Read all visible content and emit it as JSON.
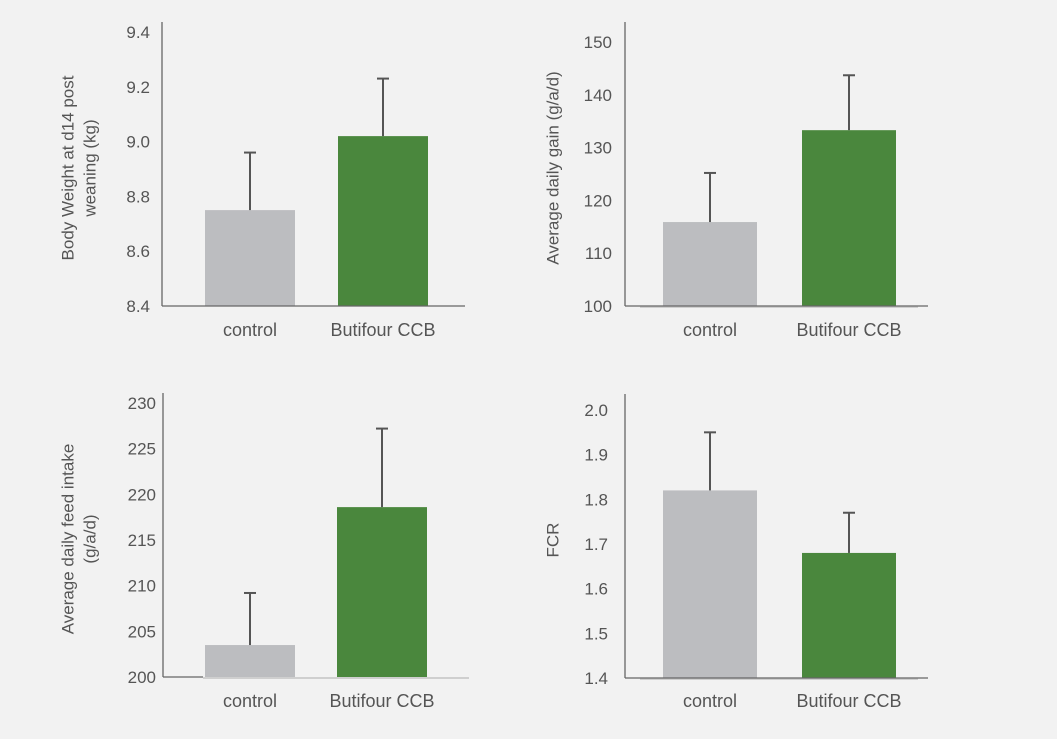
{
  "colors": {
    "background": "#f2f2f2",
    "control": "#bcbdc0",
    "treatment": "#4a873d",
    "axis": "#666666",
    "error_bar": "#555555",
    "text": "#555555"
  },
  "chart_data": [
    {
      "type": "bar",
      "id": "body-weight",
      "ylabel_lines": [
        "Body Weight at d14 post",
        "weaning (kg)"
      ],
      "categories": [
        "control",
        "Butifour CCB"
      ],
      "values": [
        8.75,
        9.02
      ],
      "error_upper": [
        8.96,
        9.23
      ],
      "ylim": [
        8.4,
        9.4
      ],
      "yticks": [
        "8.4",
        "8.6",
        "8.8",
        "9.0",
        "9.2",
        "9.4"
      ],
      "ytick_values": [
        8.4,
        8.6,
        8.8,
        9.0,
        9.2,
        9.4
      ],
      "grid": false
    },
    {
      "type": "bar",
      "id": "average-daily-gain",
      "ylabel_lines": [
        "Average daily gain (g/a/d)"
      ],
      "categories": [
        "control",
        "Butifour CCB"
      ],
      "values": [
        115.9,
        133.3
      ],
      "error_upper": [
        125.2,
        143.7
      ],
      "ylim": [
        100,
        150
      ],
      "yticks": [
        "100",
        "110",
        "120",
        "130",
        "140",
        "150"
      ],
      "ytick_values": [
        100,
        110,
        120,
        130,
        140,
        150
      ],
      "grid": false
    },
    {
      "type": "bar",
      "id": "average-daily-feed-intake",
      "ylabel_lines": [
        "Average daily feed intake",
        "(g/a/d)"
      ],
      "categories": [
        "control",
        "Butifour CCB"
      ],
      "values": [
        203.5,
        218.6
      ],
      "error_upper": [
        209.2,
        227.2
      ],
      "ylim": [
        200,
        230
      ],
      "yticks": [
        "200",
        "205",
        "210",
        "215",
        "220",
        "225",
        "230"
      ],
      "ytick_values": [
        200,
        205,
        210,
        215,
        220,
        225,
        230
      ],
      "grid": false
    },
    {
      "type": "bar",
      "id": "fcr",
      "ylabel_lines": [
        "FCR"
      ],
      "categories": [
        "control",
        "Butifour CCB"
      ],
      "values": [
        1.82,
        1.68
      ],
      "error_upper": [
        1.95,
        1.77
      ],
      "ylim": [
        1.4,
        2.0
      ],
      "yticks": [
        "1.4",
        "1.5",
        "1.6",
        "1.7",
        "1.8",
        "1.9",
        "2.0"
      ],
      "ytick_values": [
        1.4,
        1.5,
        1.6,
        1.7,
        1.8,
        1.9,
        2.0
      ],
      "grid": false
    }
  ]
}
